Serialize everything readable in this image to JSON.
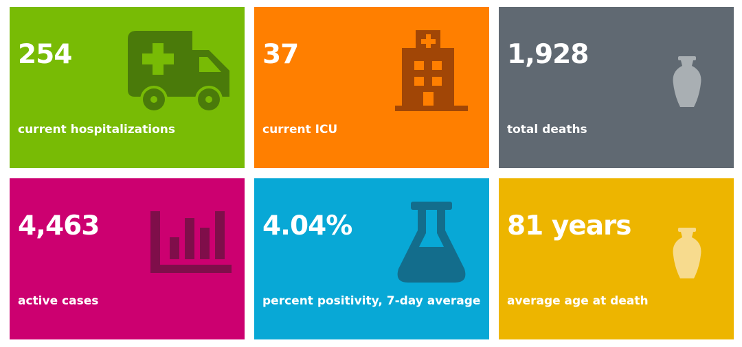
{
  "colors": {
    "hospitalizations": "#78BB05",
    "icu": "#FF7F00",
    "deaths": "#606972",
    "active_cases": "#CC0070",
    "positivity": "#08A8D6",
    "age": "#EDB500"
  },
  "tiles": [
    {
      "value": "254",
      "label": "current hospitalizations",
      "icon": "ambulance-icon"
    },
    {
      "value": "37",
      "label": "current ICU",
      "icon": "hospital-building-icon"
    },
    {
      "value": "1,928",
      "label": "total deaths",
      "icon": "urn-icon"
    },
    {
      "value": "4,463",
      "label": "active cases",
      "icon": "bar-chart-icon"
    },
    {
      "value": "4.04%",
      "label": "percent positivity, 7-day average",
      "icon": "flask-icon"
    },
    {
      "value": "81 years",
      "label": "average age at death",
      "icon": "urn-icon"
    }
  ]
}
